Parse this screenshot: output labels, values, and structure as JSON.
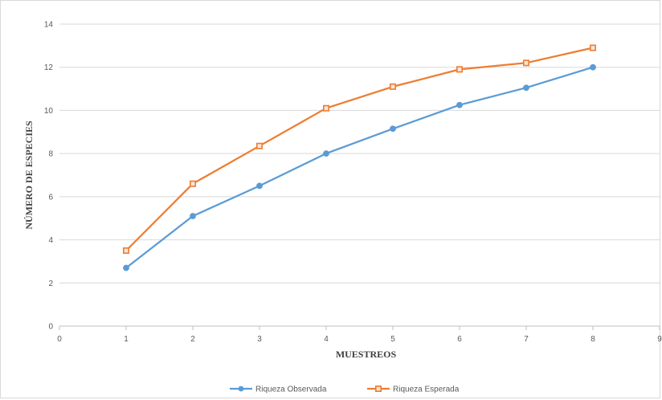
{
  "chart_data": {
    "type": "line",
    "title": "",
    "xlabel": "MUESTREOS",
    "ylabel": "NÚMERO DE ESPECIES",
    "xlim": [
      0,
      9
    ],
    "ylim": [
      0,
      14
    ],
    "x_ticks": [
      "0",
      "1",
      "2",
      "3",
      "4",
      "5",
      "6",
      "7",
      "8",
      "9"
    ],
    "y_ticks": [
      "0",
      "2",
      "4",
      "6",
      "8",
      "10",
      "12",
      "14"
    ],
    "grid": "horizontal",
    "legend_position": "bottom",
    "x": [
      1,
      2,
      3,
      4,
      5,
      6,
      7,
      8
    ],
    "series": [
      {
        "name": "Riqueza Observada",
        "color": "#5b9bd5",
        "marker": "circle",
        "values": [
          2.7,
          5.1,
          6.5,
          8.0,
          9.15,
          10.25,
          11.05,
          12.0
        ]
      },
      {
        "name": "Riqueza Esperada",
        "color": "#ed7d31",
        "marker": "square",
        "values": [
          3.5,
          6.6,
          8.35,
          10.1,
          11.1,
          11.9,
          12.2,
          12.9
        ]
      }
    ]
  }
}
